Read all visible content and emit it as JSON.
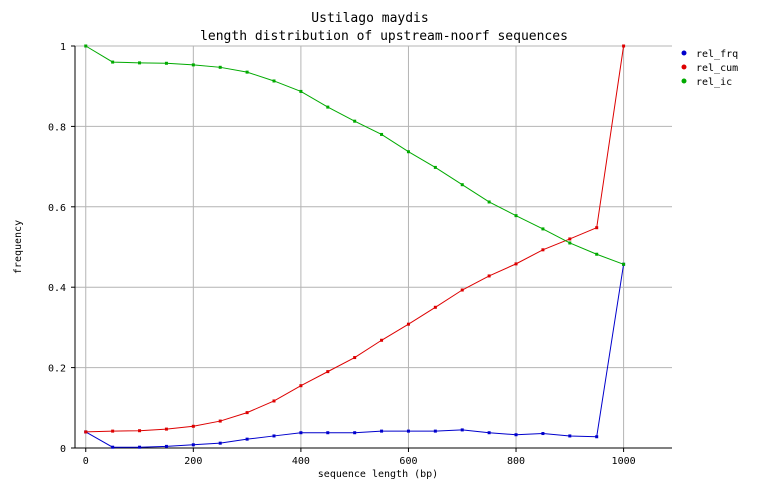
{
  "chart_data": {
    "type": "line",
    "title": "Ustilago maydis",
    "subtitle": "length distribution of upstream-noorf sequences",
    "xlabel": "sequence length (bp)",
    "ylabel": "frequency",
    "xlim": [
      -20,
      1090
    ],
    "ylim": [
      0,
      1
    ],
    "xticks": [
      0,
      200,
      400,
      600,
      800,
      1000
    ],
    "yticks": [
      0,
      0.2,
      0.4,
      0.6,
      0.8,
      1
    ],
    "xtick_labels": [
      "0",
      "200",
      "400",
      "600",
      "800",
      "1000"
    ],
    "ytick_labels": [
      "0",
      "0.2",
      "0.4",
      "0.6",
      "0.8",
      "1"
    ],
    "grid": true,
    "legend_position": "top-right",
    "x": [
      0,
      50,
      100,
      150,
      200,
      250,
      300,
      350,
      400,
      450,
      500,
      550,
      600,
      650,
      700,
      750,
      800,
      850,
      900,
      950,
      1000
    ],
    "series": [
      {
        "name": "rel_frq",
        "color": "#0000cc",
        "values": [
          0.04,
          0.002,
          0.002,
          0.004,
          0.008,
          0.012,
          0.022,
          0.03,
          0.038,
          0.038,
          0.038,
          0.042,
          0.042,
          0.042,
          0.045,
          0.038,
          0.033,
          0.036,
          0.03,
          0.028,
          0.457
        ]
      },
      {
        "name": "rel_cum",
        "color": "#dd0000",
        "values": [
          0.04,
          0.042,
          0.043,
          0.047,
          0.054,
          0.067,
          0.088,
          0.117,
          0.155,
          0.19,
          0.225,
          0.268,
          0.308,
          0.35,
          0.393,
          0.428,
          0.458,
          0.493,
          0.52,
          0.548,
          1.0
        ]
      },
      {
        "name": "rel_ic",
        "color": "#00aa00",
        "values": [
          1.0,
          0.96,
          0.958,
          0.957,
          0.953,
          0.947,
          0.935,
          0.913,
          0.887,
          0.848,
          0.813,
          0.78,
          0.737,
          0.698,
          0.655,
          0.612,
          0.578,
          0.545,
          0.51,
          0.482,
          0.457
        ]
      }
    ]
  }
}
